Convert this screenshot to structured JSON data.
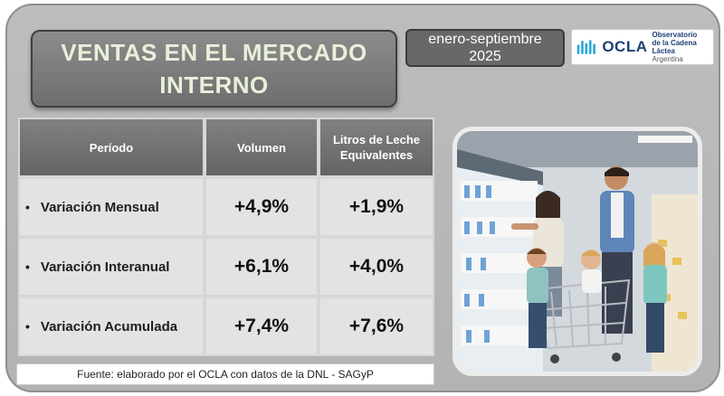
{
  "header": {
    "title": "VENTAS EN EL MERCADO INTERNO",
    "period": "enero-septiembre 2025"
  },
  "logo": {
    "name": "OCLA",
    "line1": "Observatorio",
    "line2": "de la Cadena Láctea",
    "line3": "Argentina"
  },
  "table": {
    "columns": [
      "Período",
      "Volumen",
      "Litros de Leche Equivalentes"
    ],
    "rows": [
      {
        "label": "Variación Mensual",
        "volumen": "+4,9%",
        "litros": "+1,9%"
      },
      {
        "label": "Variación Interanual",
        "volumen": "+6,1%",
        "litros": "+4,0%"
      },
      {
        "label": "Variación Acumulada",
        "volumen": "+7,4%",
        "litros": "+7,6%"
      }
    ]
  },
  "footer": {
    "source": "Fuente: elaborado por el OCLA con datos de la DNL - SAGyP"
  },
  "colors": {
    "panel": "#b8b8b8",
    "title_text": "#e8f0da",
    "brand": "#1c3f73",
    "header_cell": "#707070"
  },
  "photo": {
    "icon": "supermarket-family-photo"
  }
}
